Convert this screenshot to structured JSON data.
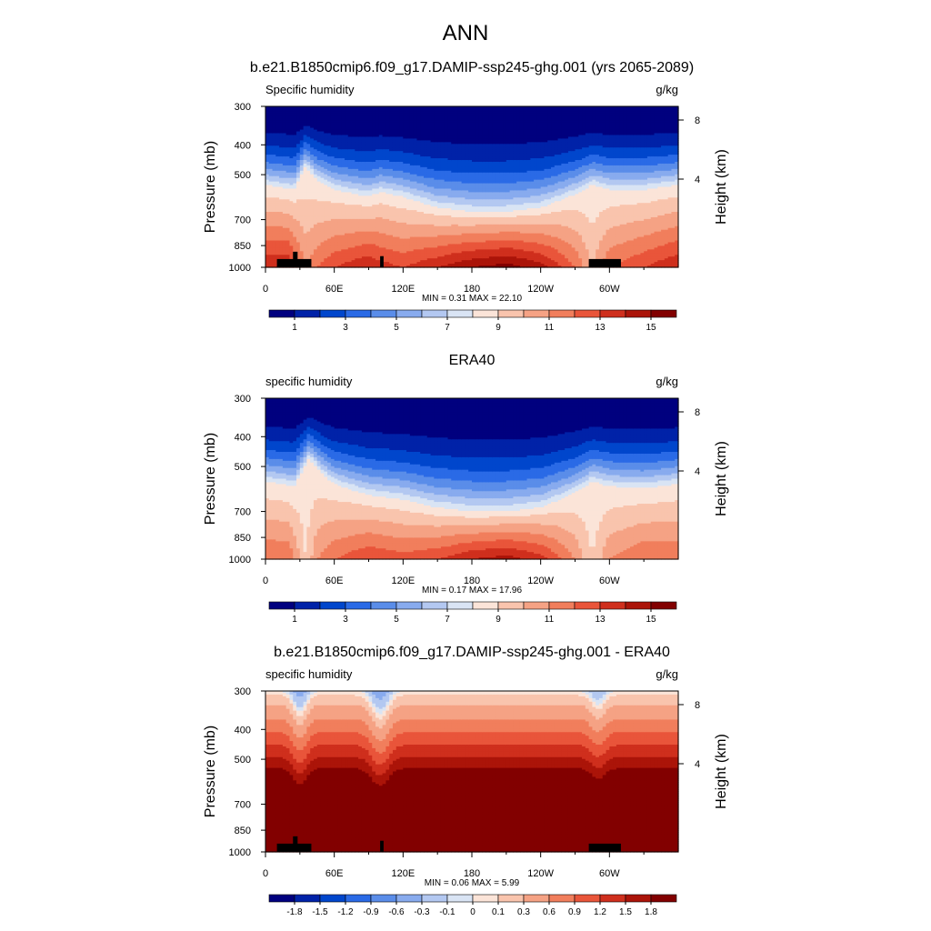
{
  "main_title": "ANN",
  "palette": {
    "humidity": [
      "#00007f",
      "#0022a8",
      "#0046cc",
      "#2a6ae6",
      "#5a8de9",
      "#88abee",
      "#b3c8f1",
      "#d9e4f4",
      "#fbe4d8",
      "#f9c4ad",
      "#f5a284",
      "#f17e5c",
      "#e9553a",
      "#cf2f1d",
      "#ab1409",
      "#820000"
    ],
    "difference": [
      "#00007f",
      "#0022a8",
      "#0046cc",
      "#2a6ae6",
      "#5a8de9",
      "#88abee",
      "#b3c8f1",
      "#d9e4f4",
      "#fbe4d8",
      "#f9c4ad",
      "#f5a284",
      "#f17e5c",
      "#e9553a",
      "#cf2f1d",
      "#ab1409",
      "#820000"
    ],
    "terrain": "#000000"
  },
  "chart_data": [
    {
      "type": "heatmap",
      "panel_title": "b.e21.B1850cmip6.f09_g17.DAMIP-ssp245-ghg.001 (yrs 2065-2089)",
      "left_label": "Specific humidity",
      "right_label": "g/kg",
      "ylabel": "Pressure (mb)",
      "y2label": "Height (km)",
      "x_ticks": [
        "0",
        "60E",
        "120E",
        "180",
        "120W",
        "60W"
      ],
      "x_tick_values": [
        0,
        60,
        120,
        180,
        240,
        300
      ],
      "xlim": [
        0,
        360
      ],
      "y_ticks": [
        "300",
        "400",
        "500",
        "700",
        "850",
        "1000"
      ],
      "y_tick_values": [
        300,
        400,
        500,
        700,
        850,
        1000
      ],
      "ylim": [
        300,
        1000
      ],
      "y2_ticks": [
        "8",
        "4"
      ],
      "y2_tick_values": [
        8,
        4
      ],
      "stats": "MIN =   0.31  MAX =  22.10",
      "min": 0.31,
      "max": 22.1,
      "colorbar_labels": [
        "1",
        "3",
        "5",
        "7",
        "9",
        "11",
        "13",
        "15"
      ],
      "colorbar_label_index": [
        1,
        3,
        5,
        7,
        9,
        11,
        13,
        15
      ],
      "surface_q_by_longitude": [
        [
          0,
          14
        ],
        [
          20,
          14
        ],
        [
          35,
          11
        ],
        [
          45,
          12
        ],
        [
          60,
          13
        ],
        [
          90,
          14
        ],
        [
          100,
          13.5
        ],
        [
          120,
          13
        ],
        [
          150,
          14
        ],
        [
          180,
          15
        ],
        [
          210,
          15.5
        ],
        [
          240,
          14.5
        ],
        [
          270,
          12
        ],
        [
          285,
          10
        ],
        [
          300,
          12
        ],
        [
          330,
          13
        ],
        [
          360,
          14
        ]
      ],
      "moist_layer_top_mb": [
        [
          0,
          540
        ],
        [
          25,
          560
        ],
        [
          35,
          470
        ],
        [
          45,
          520
        ],
        [
          60,
          560
        ],
        [
          90,
          590
        ],
        [
          100,
          570
        ],
        [
          120,
          590
        ],
        [
          150,
          640
        ],
        [
          180,
          660
        ],
        [
          210,
          660
        ],
        [
          240,
          640
        ],
        [
          270,
          580
        ],
        [
          285,
          540
        ],
        [
          300,
          560
        ],
        [
          330,
          560
        ],
        [
          360,
          540
        ]
      ],
      "terrain_mb": [
        [
          10,
          40,
          940
        ],
        [
          24,
          28,
          890
        ],
        [
          100,
          103,
          920
        ],
        [
          282,
          310,
          940
        ]
      ]
    },
    {
      "type": "heatmap",
      "panel_title": "ERA40",
      "left_label": "specific humidity",
      "right_label": "g/kg",
      "ylabel": "Pressure (mb)",
      "y2label": "Height (km)",
      "x_ticks": [
        "0",
        "60E",
        "120E",
        "180",
        "120W",
        "60W"
      ],
      "x_tick_values": [
        0,
        60,
        120,
        180,
        240,
        300
      ],
      "xlim": [
        0,
        360
      ],
      "y_ticks": [
        "300",
        "400",
        "500",
        "700",
        "850",
        "1000"
      ],
      "y_tick_values": [
        300,
        400,
        500,
        700,
        850,
        1000
      ],
      "ylim": [
        300,
        1000
      ],
      "y2_ticks": [
        "8",
        "4"
      ],
      "y2_tick_values": [
        8,
        4
      ],
      "stats": "MIN =   0.17  MAX =  17.96",
      "min": 0.17,
      "max": 17.96,
      "colorbar_labels": [
        "1",
        "3",
        "5",
        "7",
        "9",
        "11",
        "13",
        "15"
      ],
      "colorbar_label_index": [
        1,
        3,
        5,
        7,
        9,
        11,
        13,
        15
      ],
      "surface_q_by_longitude": [
        [
          0,
          12
        ],
        [
          20,
          12
        ],
        [
          35,
          9
        ],
        [
          45,
          11
        ],
        [
          60,
          12
        ],
        [
          90,
          13
        ],
        [
          120,
          12.5
        ],
        [
          150,
          13
        ],
        [
          180,
          14
        ],
        [
          210,
          14.5
        ],
        [
          240,
          13.5
        ],
        [
          270,
          11
        ],
        [
          285,
          9
        ],
        [
          300,
          11
        ],
        [
          330,
          12
        ],
        [
          360,
          12
        ]
      ],
      "moist_layer_top_mb": [
        [
          0,
          560
        ],
        [
          25,
          580
        ],
        [
          38,
          470
        ],
        [
          50,
          530
        ],
        [
          60,
          570
        ],
        [
          90,
          620
        ],
        [
          120,
          640
        ],
        [
          150,
          680
        ],
        [
          180,
          700
        ],
        [
          210,
          700
        ],
        [
          240,
          680
        ],
        [
          270,
          610
        ],
        [
          285,
          560
        ],
        [
          300,
          580
        ],
        [
          330,
          590
        ],
        [
          360,
          570
        ]
      ],
      "terrain_mb": []
    },
    {
      "type": "heatmap",
      "panel_title": "b.e21.B1850cmip6.f09_g17.DAMIP-ssp245-ghg.001 - ERA40",
      "left_label": "specific humidity",
      "right_label": "g/kg",
      "ylabel": "Pressure (mb)",
      "y2label": "Height (km)",
      "x_ticks": [
        "0",
        "60E",
        "120E",
        "180",
        "120W",
        "60W"
      ],
      "x_tick_values": [
        0,
        60,
        120,
        180,
        240,
        300
      ],
      "xlim": [
        0,
        360
      ],
      "y_ticks": [
        "300",
        "400",
        "500",
        "700",
        "850",
        "1000"
      ],
      "y_tick_values": [
        300,
        400,
        500,
        700,
        850,
        1000
      ],
      "ylim": [
        300,
        1000
      ],
      "y2_ticks": [
        "8",
        "4"
      ],
      "y2_tick_values": [
        8,
        4
      ],
      "stats": "MIN =   0.06  MAX =   5.99",
      "min": 0.06,
      "max": 5.99,
      "colorbar_labels": [
        "-1.8",
        "-1.5",
        "-1.2",
        "-0.9",
        "-0.6",
        "-0.3",
        "-0.1",
        "0",
        "0.1",
        "0.3",
        "0.6",
        "0.9",
        "1.2",
        "1.5",
        "1.8"
      ],
      "colorbar_label_index": [
        1,
        2,
        3,
        4,
        5,
        6,
        7,
        8,
        9,
        10,
        11,
        12,
        13,
        14,
        15
      ],
      "difference_levels": [
        -1.8,
        -1.5,
        -1.2,
        -0.9,
        -0.6,
        -0.3,
        -0.1,
        0,
        0.1,
        0.3,
        0.6,
        0.9,
        1.2,
        1.5,
        1.8
      ],
      "terrain_mb": [
        [
          10,
          40,
          940
        ],
        [
          24,
          28,
          890
        ],
        [
          100,
          103,
          920
        ],
        [
          282,
          310,
          940
        ]
      ]
    }
  ]
}
